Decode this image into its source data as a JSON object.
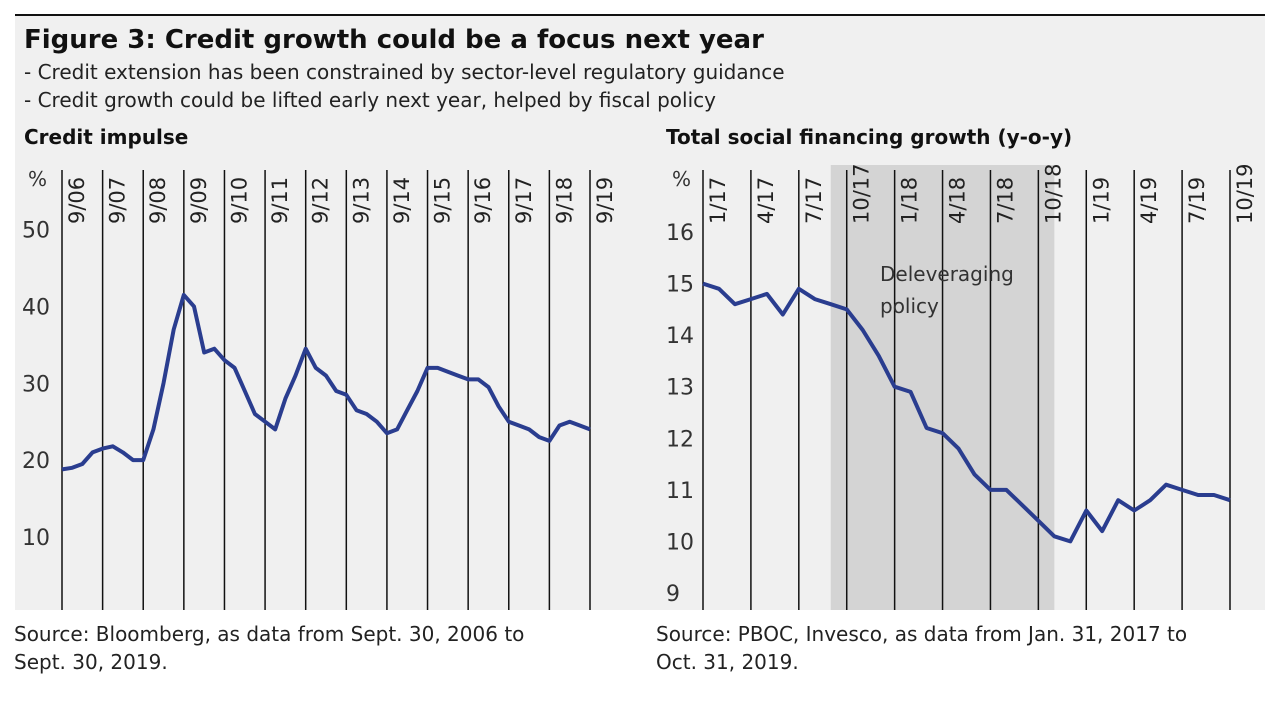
{
  "figure": {
    "title": "Figure 3: Credit growth could be a focus next year",
    "bullets": [
      "- Credit extension has been constrained by sector-level regulatory guidance",
      "- Credit growth could be lifted early next year, helped by fiscal policy"
    ]
  },
  "chart_data": [
    {
      "type": "line",
      "title": "Credit impulse",
      "y_unit": "%",
      "color": "#2a3d8f",
      "source": "Source: Bloomberg, as data from Sept. 30, 2006 to Sept. 30, 2019.",
      "categories": [
        "9/06",
        null,
        null,
        null,
        "9/07",
        null,
        null,
        null,
        "9/08",
        null,
        null,
        null,
        "9/09",
        null,
        null,
        null,
        "9/10",
        null,
        null,
        null,
        "9/11",
        null,
        null,
        null,
        "9/12",
        null,
        null,
        null,
        "9/13",
        null,
        null,
        null,
        "9/14",
        null,
        null,
        null,
        "9/15",
        null,
        null,
        null,
        "9/16",
        null,
        null,
        null,
        "9/17",
        null,
        null,
        null,
        "9/18",
        null,
        null,
        null,
        "9/19"
      ],
      "values": [
        18.8,
        19,
        19.5,
        21,
        21.5,
        21.8,
        21,
        20,
        20,
        24,
        30,
        37,
        41.5,
        40,
        34,
        34.5,
        33,
        32,
        29,
        26,
        25,
        24,
        28,
        31,
        34.5,
        32,
        31,
        29,
        28.5,
        26.5,
        26,
        25,
        23.5,
        24,
        26.5,
        29,
        32,
        32,
        31.5,
        31,
        30.5,
        30.5,
        29.5,
        27,
        25,
        24.5,
        24,
        23,
        22.5,
        24.5,
        25,
        24.5,
        24
      ],
      "ylim": [
        0.5,
        58.4
      ],
      "yticks": [
        10,
        20,
        30,
        40,
        50
      ]
    },
    {
      "type": "line",
      "title": "Total social financing growth (y-o-y)",
      "y_unit": "%",
      "color": "#2a3d8f",
      "source": "Source: PBOC, Invesco, as data from Jan. 31, 2017 to Oct. 31, 2019.",
      "categories": [
        "1/17",
        null,
        null,
        "4/17",
        null,
        null,
        "7/17",
        null,
        null,
        "10/17",
        null,
        null,
        "1/18",
        null,
        null,
        "4/18",
        null,
        null,
        "7/18",
        null,
        null,
        "10/18",
        null,
        null,
        "1/19",
        null,
        null,
        "4/19",
        null,
        null,
        "7/19",
        null,
        null,
        "10/19"
      ],
      "values": [
        15.0,
        14.9,
        14.6,
        14.7,
        14.8,
        14.4,
        14.9,
        14.7,
        14.6,
        14.5,
        14.1,
        13.6,
        13.0,
        12.9,
        12.2,
        12.1,
        11.8,
        11.3,
        11.0,
        11.0,
        10.7,
        10.4,
        10.1,
        10.0,
        10.6,
        10.2,
        10.8,
        10.6,
        10.8,
        11.1,
        11.0,
        10.9,
        10.9,
        10.8
      ],
      "ylim": [
        8.67,
        17.3
      ],
      "yticks": [
        9,
        10,
        11,
        12,
        13,
        14,
        15,
        16
      ],
      "annotation": {
        "text": "Deleveraging policy",
        "span": [
          8,
          22
        ]
      }
    }
  ]
}
